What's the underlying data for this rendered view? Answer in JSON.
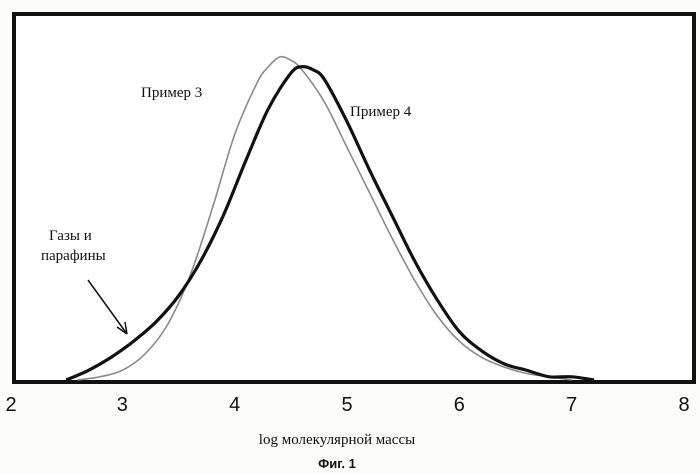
{
  "chart_data": {
    "type": "line",
    "title": "",
    "xlabel": "log молекулярной массы",
    "ylabel": "",
    "xlim": [
      2,
      8
    ],
    "ylim": [
      0,
      1.0
    ],
    "x_ticks": [
      "2",
      "3",
      "4",
      "5",
      "6",
      "7",
      "8"
    ],
    "grid": false,
    "series": [
      {
        "name": "Пример 3",
        "color": "#8a8a8a",
        "x": [
          2.6,
          2.8,
          3.0,
          3.2,
          3.4,
          3.6,
          3.8,
          4.0,
          4.2,
          4.3,
          4.4,
          4.5,
          4.6,
          4.8,
          5.0,
          5.2,
          5.4,
          5.6,
          5.8,
          6.0,
          6.2,
          6.4,
          6.6,
          6.8,
          7.0
        ],
        "values": [
          0.0,
          0.01,
          0.03,
          0.08,
          0.17,
          0.32,
          0.53,
          0.76,
          0.92,
          0.97,
          1.0,
          0.99,
          0.96,
          0.86,
          0.72,
          0.58,
          0.44,
          0.31,
          0.2,
          0.12,
          0.07,
          0.04,
          0.02,
          0.01,
          0.0
        ]
      },
      {
        "name": "Пример 4",
        "color": "#111111",
        "x": [
          2.5,
          2.7,
          2.9,
          3.1,
          3.3,
          3.5,
          3.7,
          3.9,
          4.1,
          4.3,
          4.5,
          4.6,
          4.7,
          4.8,
          5.0,
          5.2,
          5.4,
          5.6,
          5.8,
          6.0,
          6.2,
          6.4,
          6.6,
          6.8,
          7.0,
          7.2
        ],
        "values": [
          0.0,
          0.03,
          0.07,
          0.12,
          0.18,
          0.26,
          0.37,
          0.51,
          0.68,
          0.84,
          0.95,
          0.97,
          0.96,
          0.93,
          0.8,
          0.65,
          0.51,
          0.37,
          0.25,
          0.15,
          0.09,
          0.05,
          0.03,
          0.01,
          0.01,
          0.0
        ]
      }
    ],
    "annotations": [
      {
        "text": "Газы и",
        "line2": "парафины",
        "arrow_to_x": 3.12,
        "arrow_to_y": 0.12
      }
    ]
  },
  "labels": {
    "series3": "Пример 3",
    "series4": "Пример 4",
    "gases_line1": "Газы и",
    "gases_line2": "парафины"
  },
  "caption": "Фиг. 1"
}
